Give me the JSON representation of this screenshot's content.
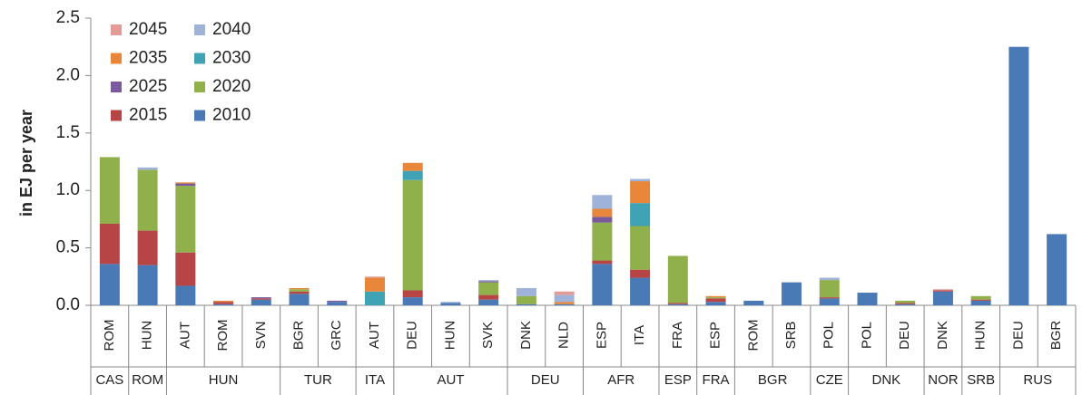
{
  "chart_data": {
    "type": "stacked-bar",
    "y_label": "in EJ per year",
    "categories": [
      "ROM",
      "HUN",
      "AUT",
      "ROM",
      "SVN",
      "BGR",
      "GRC",
      "AUT",
      "DEU",
      "HUN",
      "SVK",
      "DNK",
      "NLD",
      "ESP",
      "ITA",
      "FRA",
      "ESP",
      "ROM",
      "SRB",
      "POL",
      "POL",
      "DEU",
      "DNK",
      "HUN",
      "DEU",
      "BGR"
    ],
    "groups": [
      "CAS",
      "ROM",
      "HUN",
      null,
      null,
      "TUR",
      null,
      "ITA",
      "AUT",
      null,
      null,
      "DEU",
      null,
      "AFR",
      null,
      "ESP",
      "FRA",
      "BGR",
      null,
      "CZE",
      "DNK",
      null,
      "NOR",
      "SRB",
      "RUS",
      null
    ],
    "series": [
      {
        "name": "2045",
        "color": "#e39b98",
        "values": [
          0,
          0,
          0,
          0,
          0,
          0,
          0,
          0.01,
          0,
          0,
          0,
          0,
          0.03,
          0,
          0,
          0,
          0,
          0,
          0,
          0,
          0,
          0,
          0.01,
          0,
          0,
          0
        ]
      },
      {
        "name": "2040",
        "color": "#9fb3d9",
        "values": [
          0,
          0.02,
          0,
          0,
          0,
          0,
          0,
          0,
          0,
          0.01,
          0.01,
          0.07,
          0.06,
          0.12,
          0.02,
          0,
          0,
          0,
          0,
          0.02,
          0,
          0,
          0,
          0,
          0,
          0
        ]
      },
      {
        "name": "2035",
        "color": "#e8873a",
        "values": [
          0,
          0,
          0.01,
          0.01,
          0,
          0.01,
          0,
          0.12,
          0.07,
          0,
          0,
          0,
          0.02,
          0.07,
          0.19,
          0,
          0.01,
          0,
          0,
          0,
          0,
          0,
          0,
          0,
          0,
          0
        ]
      },
      {
        "name": "2030",
        "color": "#3fa3b5",
        "values": [
          0,
          0,
          0,
          0,
          0,
          0,
          0,
          0.12,
          0.08,
          0,
          0,
          0,
          0,
          0,
          0.2,
          0,
          0,
          0,
          0,
          0,
          0,
          0,
          0,
          0,
          0,
          0
        ]
      },
      {
        "name": "2025",
        "color": "#7a5a9a",
        "values": [
          0,
          0,
          0.02,
          0,
          0.01,
          0,
          0.01,
          0,
          0,
          0,
          0.01,
          0,
          0,
          0.05,
          0,
          0,
          0,
          0,
          0,
          0,
          0,
          0,
          0,
          0,
          0,
          0
        ]
      },
      {
        "name": "2020",
        "color": "#8fb04b",
        "values": [
          0.58,
          0.53,
          0.58,
          0,
          0,
          0.02,
          0,
          0,
          0.96,
          0,
          0.11,
          0.07,
          0,
          0.33,
          0.38,
          0.41,
          0.01,
          0,
          0,
          0.15,
          0,
          0.02,
          0,
          0.03,
          0,
          0
        ]
      },
      {
        "name": "2015",
        "color": "#b84545",
        "values": [
          0.35,
          0.3,
          0.29,
          0.02,
          0.01,
          0.02,
          0,
          0,
          0.06,
          0,
          0.04,
          0,
          0,
          0.03,
          0.07,
          0.01,
          0.03,
          0,
          0,
          0.01,
          0,
          0.01,
          0.01,
          0.01,
          0,
          0
        ]
      },
      {
        "name": "2010",
        "color": "#4a7ab5",
        "values": [
          0.36,
          0.35,
          0.17,
          0.01,
          0.05,
          0.1,
          0.03,
          0,
          0.07,
          0.02,
          0.05,
          0.01,
          0.01,
          0.36,
          0.24,
          0.01,
          0.03,
          0.04,
          0.2,
          0.06,
          0.11,
          0.01,
          0.12,
          0.04,
          2.25,
          0.62
        ]
      }
    ],
    "ylim": [
      0,
      2.5
    ],
    "yticks": [
      {
        "value": 0,
        "label": "0.0"
      },
      {
        "value": 0.5,
        "label": "0.5"
      },
      {
        "value": 1,
        "label": "1.0"
      },
      {
        "value": 1.5,
        "label": "1.5"
      },
      {
        "value": 2,
        "label": "2.0"
      },
      {
        "value": 2.5,
        "label": "2.5"
      }
    ],
    "grid": false
  }
}
